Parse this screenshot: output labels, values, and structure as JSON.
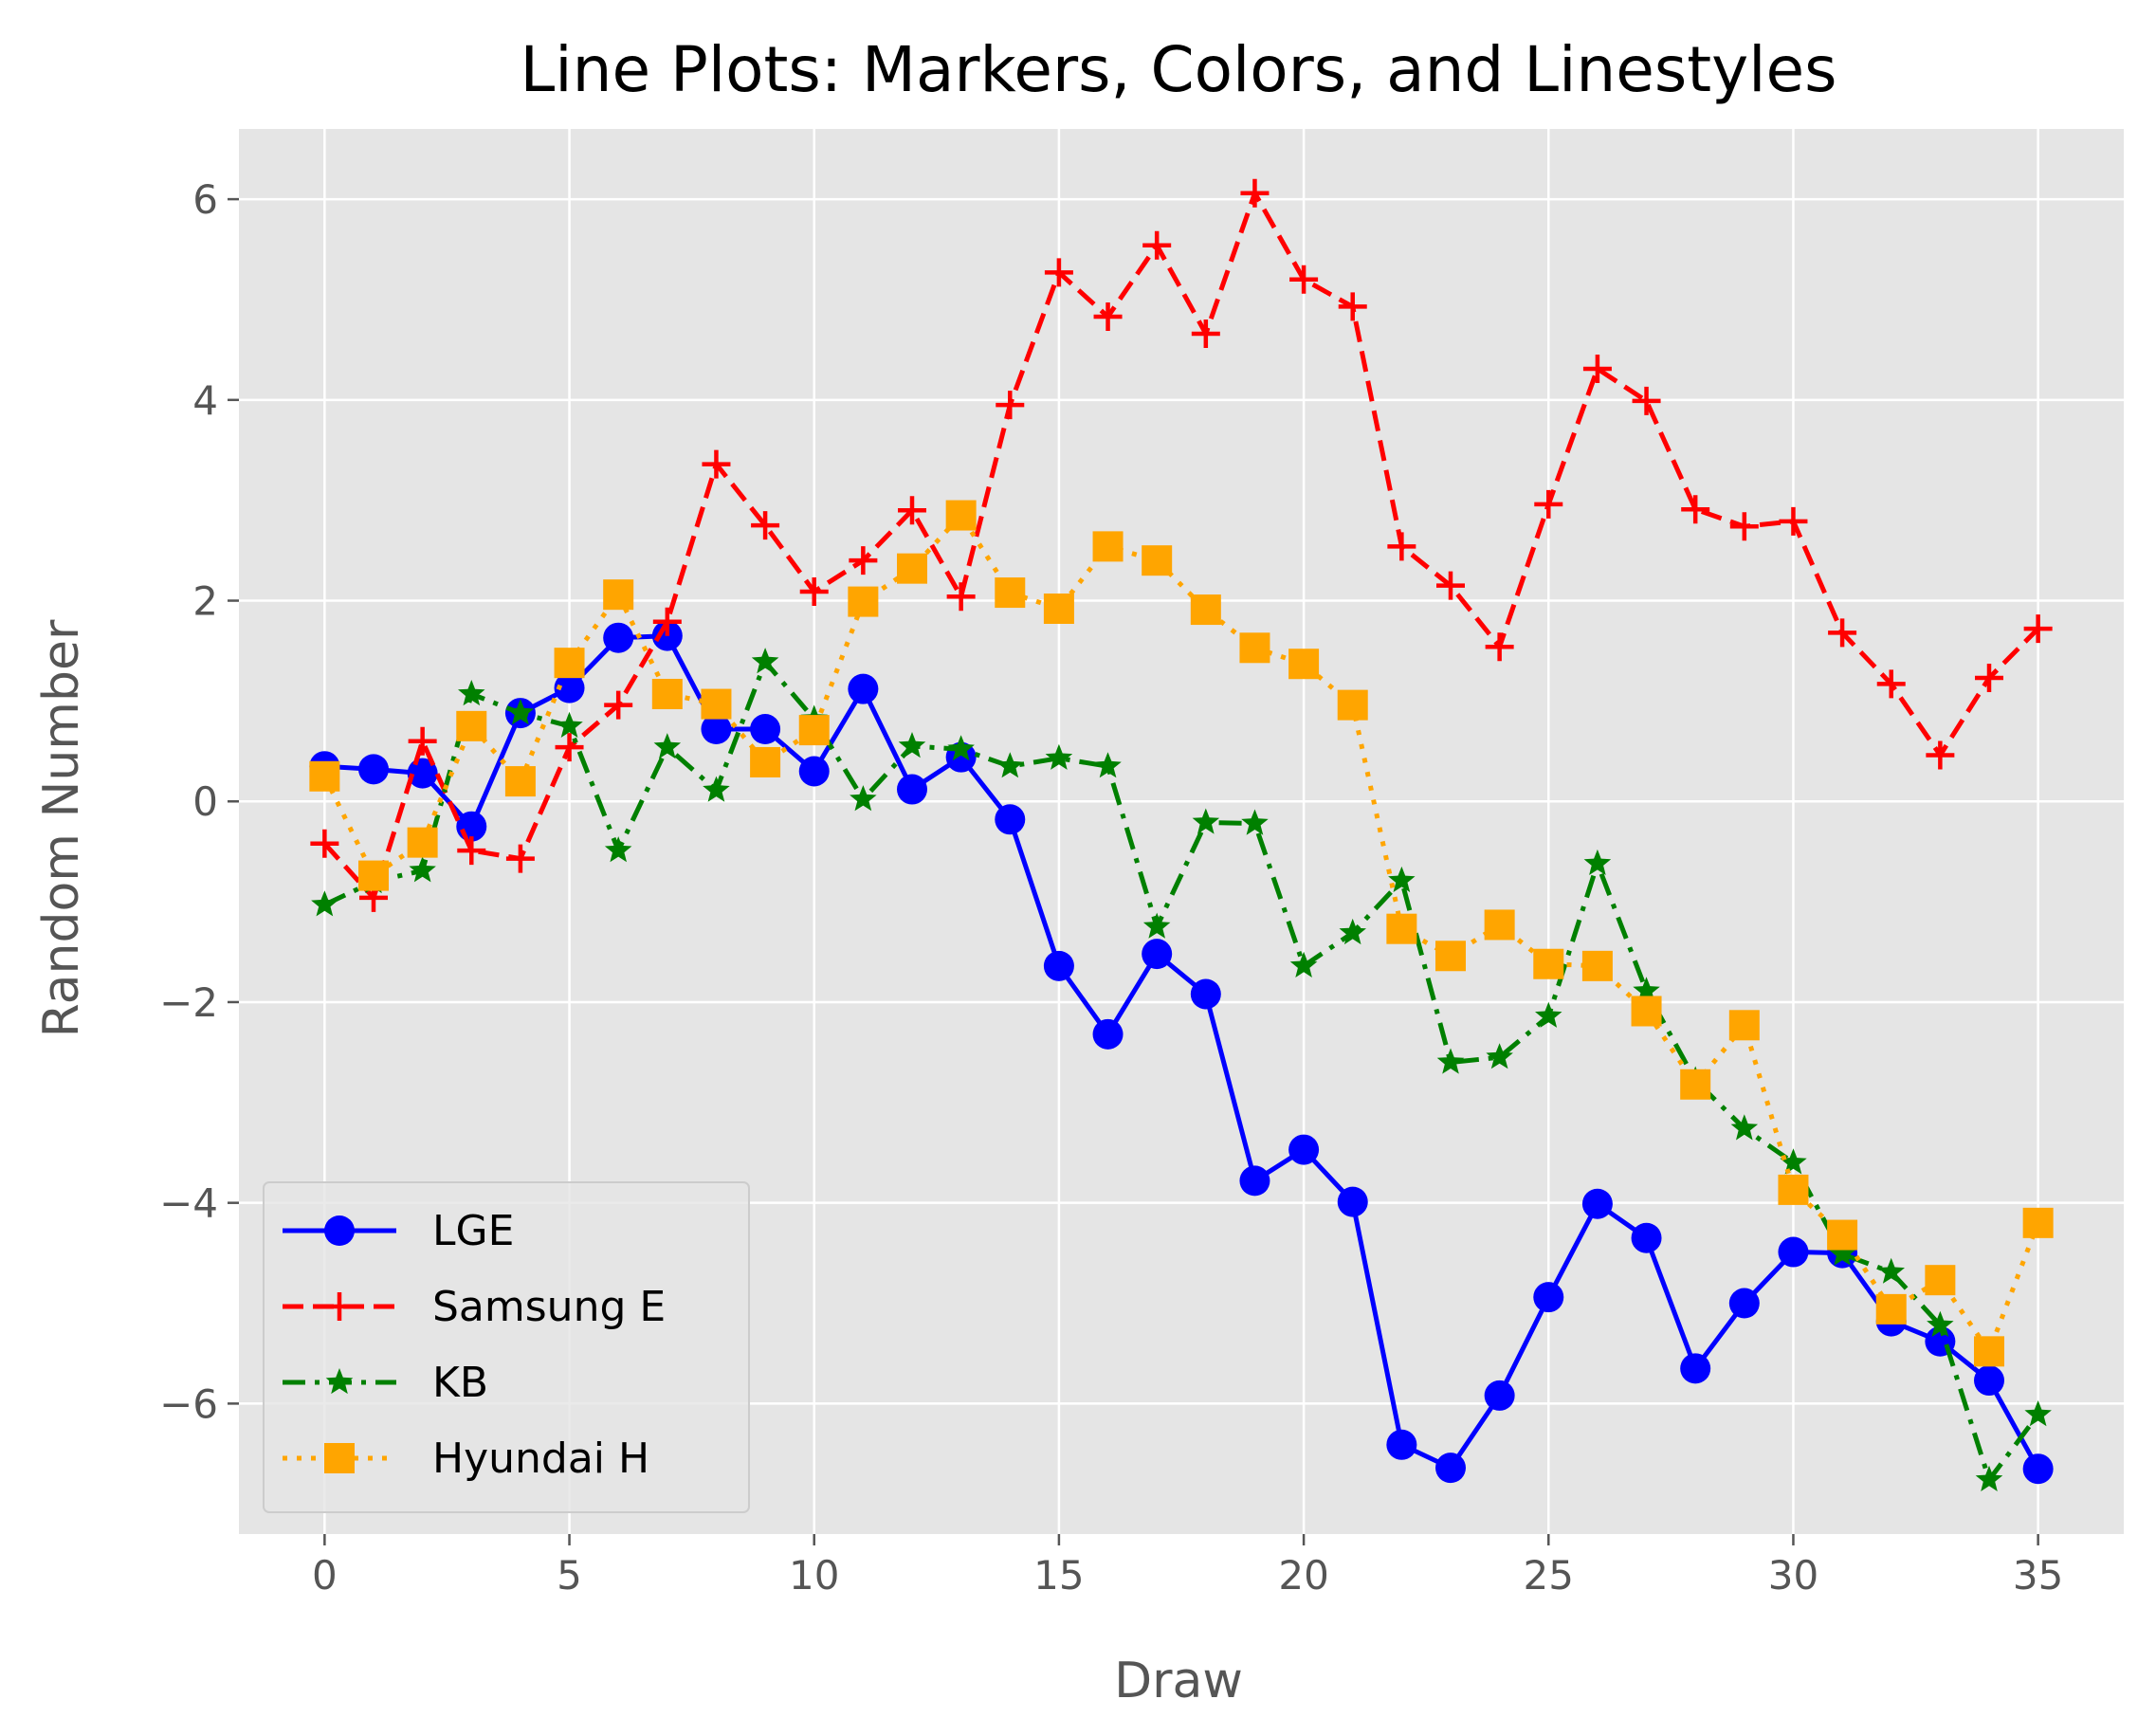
{
  "chart_data": {
    "type": "line",
    "title": "Line Plots: Markers, Colors, and Linestyles",
    "xlabel": "Draw",
    "ylabel": "Random Number",
    "xlim": [
      -1.75,
      36.75
    ],
    "ylim": [
      -7.3,
      6.7
    ],
    "xticks": [
      0,
      5,
      10,
      15,
      20,
      25,
      30,
      35
    ],
    "yticks": [
      -6,
      -4,
      -2,
      0,
      2,
      4,
      6
    ],
    "ytick_labels": [
      "−6",
      "−4",
      "−2",
      "0",
      "2",
      "4",
      "6"
    ],
    "grid": true,
    "legend_position": "lower-left",
    "x": [
      0,
      1,
      2,
      3,
      4,
      5,
      6,
      7,
      8,
      9,
      10,
      11,
      12,
      13,
      14,
      15,
      16,
      17,
      18,
      19,
      20,
      21,
      22,
      23,
      24,
      25,
      26,
      27,
      28,
      29,
      30,
      31,
      32,
      33,
      34,
      35
    ],
    "series": [
      {
        "name": "LGE",
        "color": "#0000ff",
        "marker": "circle",
        "linestyle": "solid",
        "values": [
          0.35,
          0.32,
          0.28,
          -0.25,
          0.88,
          1.13,
          1.63,
          1.65,
          0.72,
          0.72,
          0.3,
          1.12,
          0.12,
          0.44,
          -0.18,
          -1.64,
          -2.32,
          -1.52,
          -1.92,
          -3.78,
          -3.47,
          -3.99,
          -6.41,
          -6.64,
          -5.92,
          -4.94,
          -4.01,
          -4.35,
          -5.65,
          -5.0,
          -4.49,
          -4.5,
          -5.18,
          -5.38,
          -5.77,
          -6.65
        ]
      },
      {
        "name": "Samsung E",
        "color": "#ff0000",
        "marker": "plus",
        "linestyle": "dashed",
        "values": [
          -0.42,
          -0.96,
          0.6,
          -0.49,
          -0.57,
          0.54,
          0.96,
          1.79,
          3.36,
          2.75,
          2.09,
          2.4,
          2.9,
          2.04,
          3.95,
          5.27,
          4.83,
          5.54,
          4.66,
          6.06,
          5.2,
          4.93,
          2.54,
          2.15,
          1.54,
          2.96,
          4.31,
          3.99,
          2.91,
          2.74,
          2.79,
          1.68,
          1.17,
          0.46,
          1.23,
          1.72
        ]
      },
      {
        "name": "KB",
        "color": "#008000",
        "marker": "star",
        "linestyle": "dashdot",
        "values": [
          -1.03,
          -0.8,
          -0.69,
          1.07,
          0.88,
          0.75,
          -0.49,
          0.54,
          0.11,
          1.39,
          0.82,
          0.02,
          0.55,
          0.52,
          0.35,
          0.43,
          0.35,
          -1.25,
          -0.21,
          -0.22,
          -1.64,
          -1.31,
          -0.79,
          -2.6,
          -2.55,
          -2.14,
          -0.62,
          -1.89,
          -2.78,
          -3.26,
          -3.6,
          -4.51,
          -4.69,
          -5.22,
          -6.76,
          -6.11
        ]
      },
      {
        "name": "Hyundai H",
        "color": "#ffa500",
        "marker": "square",
        "linestyle": "dotted",
        "values": [
          0.25,
          -0.74,
          -0.41,
          0.75,
          0.2,
          1.38,
          2.06,
          1.07,
          0.97,
          0.39,
          0.71,
          1.99,
          2.32,
          2.85,
          2.08,
          1.92,
          2.54,
          2.4,
          1.91,
          1.53,
          1.37,
          0.96,
          -1.27,
          -1.54,
          -1.23,
          -1.62,
          -1.64,
          -2.09,
          -2.82,
          -2.23,
          -3.87,
          -4.32,
          -5.06,
          -4.77,
          -5.48,
          -4.2
        ]
      }
    ]
  }
}
